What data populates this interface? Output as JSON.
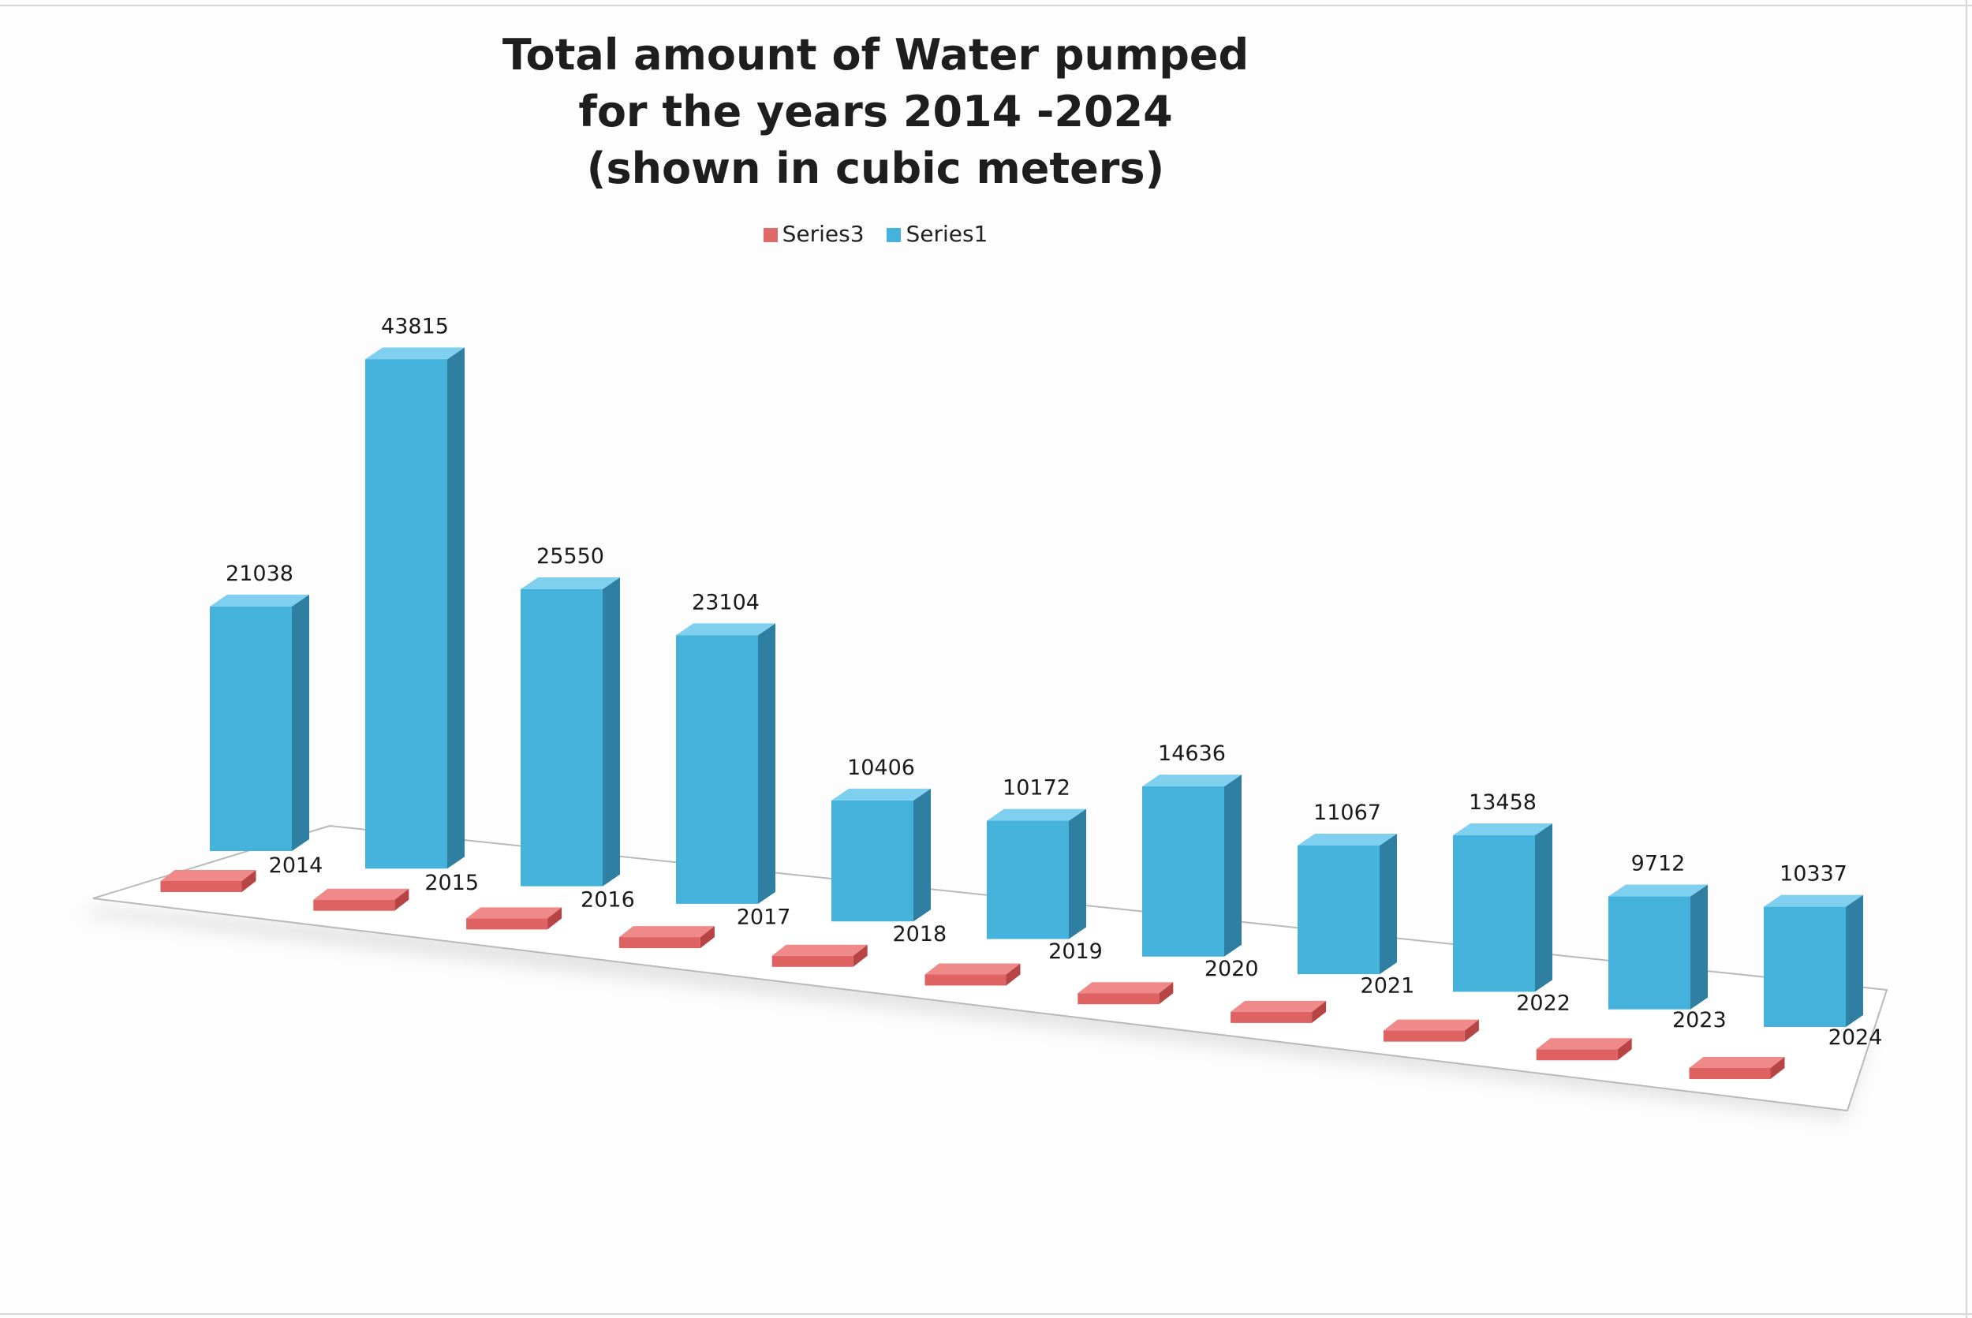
{
  "chart_data": {
    "type": "bar",
    "title_lines": [
      "Total amount of  Water pumped",
      "for the years 2014 -2024",
      "(shown in cubic meters)"
    ],
    "categories": [
      "2014",
      "2015",
      "2016",
      "2017",
      "2018",
      "2019",
      "2020",
      "2021",
      "2022",
      "2023",
      "2024"
    ],
    "series": [
      {
        "name": "Series3",
        "values": [
          0,
          0,
          0,
          0,
          0,
          0,
          0,
          0,
          0,
          0,
          0
        ],
        "color": "#e06a6a"
      },
      {
        "name": "Series1",
        "values": [
          21038,
          43815,
          25550,
          23104,
          10406,
          10172,
          14636,
          11067,
          13458,
          9712,
          10337
        ],
        "color": "#45b2dc"
      }
    ],
    "value_labels": [
      "21038",
      "43815",
      "25550",
      "23104",
      "10406",
      "10172",
      "14636",
      "11067",
      "13458",
      "9712",
      "10337"
    ],
    "legend": {
      "position": "top",
      "entries": [
        "Series3",
        "Series1"
      ]
    },
    "grid": false
  }
}
